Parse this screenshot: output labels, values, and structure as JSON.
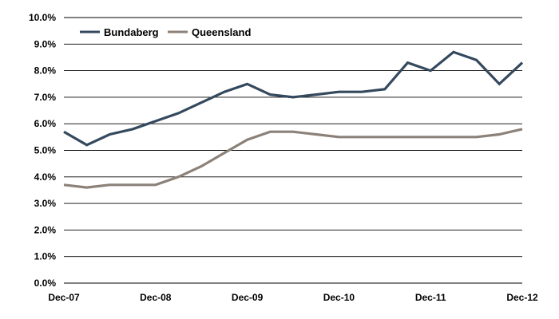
{
  "chart_data": {
    "type": "line",
    "title": "",
    "xlabel": "",
    "ylabel": "",
    "ylim": [
      0,
      10
    ],
    "yticks": [
      "0.0%",
      "1.0%",
      "2.0%",
      "3.0%",
      "4.0%",
      "5.0%",
      "6.0%",
      "7.0%",
      "8.0%",
      "9.0%",
      "10.0%"
    ],
    "x": [
      "Dec-07",
      "Mar-08",
      "Jun-08",
      "Sep-08",
      "Dec-08",
      "Mar-09",
      "Jun-09",
      "Sep-09",
      "Dec-09",
      "Mar-10",
      "Jun-10",
      "Sep-10",
      "Dec-10",
      "Mar-11",
      "Jun-11",
      "Sep-11",
      "Dec-11",
      "Mar-12",
      "Jun-12",
      "Sep-12",
      "Dec-12"
    ],
    "xtick_labels": [
      "Dec-07",
      "Dec-08",
      "Dec-09",
      "Dec-10",
      "Dec-11",
      "Dec-12"
    ],
    "grid": true,
    "legend_position": "top-left",
    "series": [
      {
        "name": "Bundaberg",
        "color": "#34495e",
        "values": [
          5.7,
          5.2,
          5.6,
          5.8,
          6.1,
          6.4,
          6.8,
          7.2,
          7.5,
          7.1,
          7.0,
          7.1,
          7.2,
          7.2,
          7.3,
          8.3,
          8.0,
          8.7,
          8.4,
          7.5,
          8.3
        ]
      },
      {
        "name": "Queensland",
        "color": "#8c8178",
        "values": [
          3.7,
          3.6,
          3.7,
          3.7,
          3.7,
          4.0,
          4.4,
          4.9,
          5.4,
          5.7,
          5.7,
          5.6,
          5.5,
          5.5,
          5.5,
          5.5,
          5.5,
          5.5,
          5.5,
          5.6,
          5.8
        ]
      }
    ]
  }
}
